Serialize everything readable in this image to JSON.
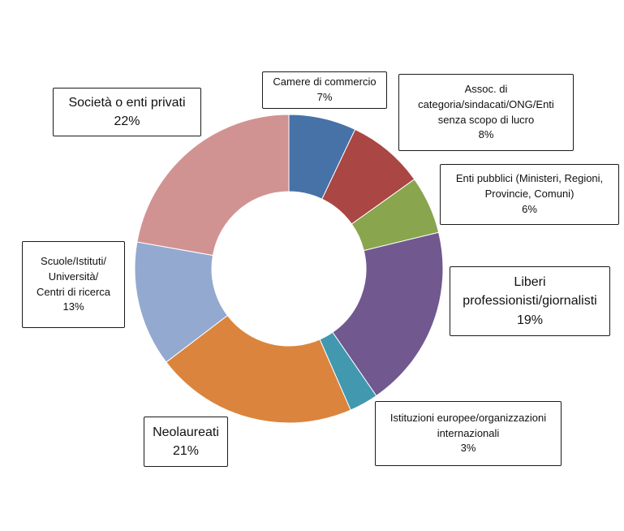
{
  "chart_data": {
    "type": "pie",
    "variant": "donut",
    "title": "",
    "categories": [
      "Camere di commercio",
      "Assoc. di categoria/sindacati/ONG/Enti senza scopo di lucro",
      "Enti pubblici (Ministeri, Regioni, Provincie, Comuni)",
      "Liberi professionisti/giornalisti",
      "Istituzioni europee/organizzazioni internazionali",
      "Neolaureati",
      "Scuole/Istituti/ Università/ Centri di ricerca",
      "Società o enti privati"
    ],
    "values": [
      7,
      8,
      6,
      19,
      3,
      21,
      13,
      22
    ],
    "value_labels": [
      "7%",
      "8%",
      "6%",
      "19%",
      "3%",
      "21%",
      "13%",
      "22%"
    ],
    "colors": [
      "#4672a8",
      "#aa4643",
      "#89a54e",
      "#71588f",
      "#4198af",
      "#db843d",
      "#93a9cf",
      "#d19392"
    ],
    "start": "12 o'clock, clockwise",
    "legend": "none (callout labels)"
  },
  "callouts": [
    {
      "label": "Camere di commercio",
      "pct": "7%"
    },
    {
      "label": "Assoc. di\ncategoria/sindacati/ONG/Enti\nsenza scopo di lucro",
      "pct": "8%"
    },
    {
      "label": "Enti pubblici (Ministeri, Regioni,\nProvincie, Comuni)",
      "pct": "6%"
    },
    {
      "label": "Liberi\nprofessionisti/giornalisti",
      "pct": "19%"
    },
    {
      "label": "Istituzioni europee/organizzazioni\ninternazionali",
      "pct": "3%"
    },
    {
      "label": "Neolaureati",
      "pct": "21%"
    },
    {
      "label": "Scuole/Istituti/\nUniversità/\nCentri di ricerca",
      "pct": "13%"
    },
    {
      "label": "Società o enti privati",
      "pct": "22%"
    }
  ]
}
